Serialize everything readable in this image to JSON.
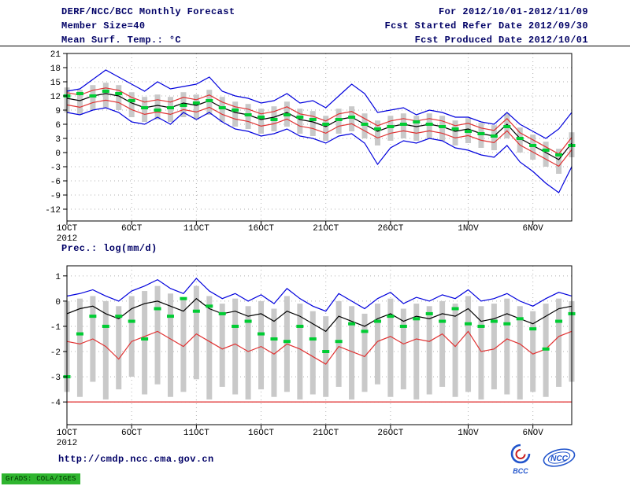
{
  "header": {
    "left": [
      "DERF/NCC/BCC Monthly Forecast",
      "Member Size=40",
      "Mean Surf. Temp.: °C"
    ],
    "right": [
      "For 2012/10/01-2012/11/09",
      "Fcst Started Refer Date 2012/09/30",
      "Fcst Produced Date 2012/10/01"
    ]
  },
  "footer": {
    "url": "http://cmdp.ncc.cma.gov.cn",
    "bcc_label": "BCC",
    "ncc_label": "NCC",
    "stamp": "GrADS: COLA/IGES"
  },
  "colors": {
    "annotation": "#000066",
    "ensemble_envelope": "#0000dd",
    "ensemble_mean": "#000000",
    "std_band": "#e03232",
    "observation": "#00cc33",
    "spread_bar": "#c9c9c9",
    "grid": "#b0b0b0"
  },
  "chart_data": [
    {
      "type": "line",
      "title": "Mean Surf. Temp.: °C",
      "ylabel": "°C",
      "ylim": [
        -14.5,
        21
      ],
      "yticks": [
        21,
        18,
        15,
        12,
        9,
        6,
        3,
        0,
        -3,
        -6,
        -9,
        -12
      ],
      "grid": true,
      "x_count": 40,
      "xticks": [
        {
          "i": 0,
          "label": "1OCT",
          "sub": "2012"
        },
        {
          "i": 5,
          "label": "6OCT"
        },
        {
          "i": 10,
          "label": "11OCT"
        },
        {
          "i": 15,
          "label": "16OCT"
        },
        {
          "i": 20,
          "label": "21OCT"
        },
        {
          "i": 25,
          "label": "26OCT"
        },
        {
          "i": 31,
          "label": "1NOV"
        },
        {
          "i": 36,
          "label": "6NOV"
        }
      ],
      "bars": {
        "name": "ensemble-spread",
        "color": "#c9c9c9",
        "top": [
          13.8,
          13.3,
          14.3,
          14.8,
          14.3,
          12.8,
          11.8,
          12.3,
          11.8,
          12.8,
          12.3,
          13.3,
          11.8,
          10.8,
          10.3,
          9.3,
          9.8,
          10.8,
          9.3,
          8.8,
          7.8,
          9.3,
          9.8,
          8.3,
          6.8,
          7.8,
          8.3,
          7.8,
          8.3,
          7.8,
          6.8,
          7.3,
          6.3,
          5.8,
          8.3,
          5.3,
          3.8,
          2.3,
          0.8,
          4.3
        ],
        "bottom": [
          8.5,
          8.0,
          9.0,
          9.5,
          9.0,
          7.5,
          6.5,
          7.0,
          6.5,
          7.5,
          7.0,
          8.0,
          6.5,
          5.5,
          5.0,
          4.0,
          4.5,
          5.5,
          4.0,
          3.5,
          2.5,
          4.0,
          4.5,
          3.0,
          1.5,
          2.5,
          3.0,
          2.5,
          3.0,
          2.5,
          1.5,
          2.0,
          1.0,
          0.5,
          3.0,
          0.0,
          -1.5,
          -3.0,
          -4.5,
          -1.0
        ]
      },
      "series": [
        {
          "name": "ensemble-max",
          "color": "#0000dd",
          "values": [
            13.0,
            13.5,
            15.5,
            17.5,
            16.0,
            14.5,
            13.0,
            15.0,
            13.5,
            14.0,
            14.5,
            16.0,
            13.0,
            12.0,
            11.5,
            10.5,
            11.0,
            12.5,
            10.5,
            11.0,
            9.5,
            12.0,
            14.5,
            12.5,
            8.5,
            9.0,
            9.5,
            8.0,
            9.0,
            8.5,
            7.5,
            7.5,
            6.5,
            6.0,
            8.5,
            6.0,
            4.5,
            3.0,
            5.0,
            8.5
          ]
        },
        {
          "name": "plus-1-std",
          "color": "#e03232",
          "values": [
            12.7,
            12.2,
            13.2,
            13.7,
            13.2,
            11.7,
            10.7,
            11.2,
            10.7,
            11.7,
            11.2,
            12.2,
            10.7,
            9.7,
            9.2,
            8.2,
            8.7,
            9.7,
            8.2,
            7.7,
            6.7,
            8.2,
            8.7,
            7.2,
            5.7,
            6.7,
            7.2,
            6.7,
            7.2,
            6.7,
            5.7,
            6.2,
            5.2,
            4.7,
            7.2,
            4.2,
            2.7,
            1.2,
            -0.3,
            3.2
          ]
        },
        {
          "name": "ensemble-mean",
          "color": "#000000",
          "values": [
            11.5,
            11.0,
            12.0,
            12.5,
            12.0,
            10.5,
            9.5,
            10.0,
            9.5,
            10.5,
            10.0,
            11.0,
            9.5,
            8.5,
            8.0,
            7.0,
            7.5,
            8.5,
            7.0,
            6.5,
            5.5,
            7.0,
            7.5,
            6.0,
            4.5,
            5.5,
            6.0,
            5.5,
            6.0,
            5.5,
            4.5,
            5.0,
            4.0,
            3.5,
            6.0,
            3.0,
            1.5,
            0.0,
            -1.5,
            2.0
          ]
        },
        {
          "name": "minus-1-std",
          "color": "#e03232",
          "values": [
            10.1,
            9.6,
            10.6,
            11.1,
            10.6,
            9.1,
            8.1,
            8.6,
            8.1,
            9.1,
            8.6,
            9.6,
            8.1,
            7.1,
            6.6,
            5.6,
            6.1,
            7.1,
            5.6,
            5.1,
            4.1,
            5.6,
            6.1,
            4.6,
            3.1,
            4.1,
            4.6,
            4.1,
            4.6,
            4.1,
            3.1,
            3.6,
            2.6,
            2.1,
            4.6,
            1.6,
            0.1,
            -1.4,
            -2.9,
            0.6
          ]
        },
        {
          "name": "ensemble-min",
          "color": "#0000dd",
          "values": [
            8.5,
            8.0,
            9.0,
            9.5,
            8.5,
            6.5,
            6.0,
            7.5,
            6.0,
            8.5,
            7.0,
            8.5,
            6.5,
            5.0,
            4.5,
            3.5,
            4.0,
            5.0,
            3.5,
            3.0,
            2.0,
            3.5,
            4.0,
            2.0,
            -2.5,
            1.0,
            2.5,
            2.0,
            3.0,
            2.5,
            1.0,
            0.5,
            -0.5,
            -1.0,
            1.5,
            -2.0,
            -4.0,
            -6.5,
            -8.5,
            -3.0
          ]
        }
      ],
      "markers": {
        "name": "observation",
        "color": "#00cc33",
        "values": [
          12.0,
          12.5,
          12.0,
          13.0,
          12.5,
          11.0,
          9.5,
          9.0,
          9.5,
          10.0,
          10.5,
          11.0,
          9.5,
          9.0,
          8.0,
          7.5,
          7.0,
          8.0,
          7.5,
          7.0,
          6.0,
          7.0,
          7.5,
          6.0,
          5.0,
          5.5,
          6.0,
          6.5,
          6.0,
          5.5,
          5.0,
          4.5,
          4.0,
          3.5,
          5.5,
          3.0,
          1.5,
          0.5,
          -0.5,
          1.5
        ]
      }
    },
    {
      "type": "line",
      "title": "Prec.: log(mm/d)",
      "ylabel": "log(mm/d)",
      "ylim": [
        -4.9,
        1.4
      ],
      "yticks": [
        1,
        0,
        -1,
        -2,
        -3,
        -4
      ],
      "grid": true,
      "x_count": 40,
      "xticks": [
        {
          "i": 0,
          "label": "1OCT",
          "sub": "2012"
        },
        {
          "i": 5,
          "label": "6OCT"
        },
        {
          "i": 10,
          "label": "11OCT"
        },
        {
          "i": 15,
          "label": "16OCT"
        },
        {
          "i": 20,
          "label": "21OCT"
        },
        {
          "i": 25,
          "label": "26OCT"
        },
        {
          "i": 31,
          "label": "1NOV"
        },
        {
          "i": 36,
          "label": "6NOV"
        }
      ],
      "baseline": {
        "y": -4,
        "color": "#e03232"
      },
      "bars": {
        "name": "ensemble-spread",
        "color": "#c9c9c9",
        "top": [
          0.0,
          0.1,
          0.2,
          0.0,
          -0.2,
          0.2,
          0.4,
          0.6,
          0.3,
          0.1,
          0.6,
          0.2,
          -0.1,
          0.1,
          -0.2,
          0.0,
          -0.3,
          0.2,
          -0.1,
          -0.4,
          -0.6,
          0.0,
          -0.2,
          -0.5,
          -0.1,
          0.1,
          -0.3,
          -0.1,
          -0.2,
          0.0,
          -0.1,
          0.2,
          -0.2,
          -0.1,
          0.1,
          -0.2,
          -0.4,
          -0.1,
          0.1,
          0.0
        ],
        "bottom": [
          -3.6,
          -3.8,
          -3.2,
          -3.9,
          -3.5,
          -3.0,
          -3.7,
          -3.3,
          -3.8,
          -3.6,
          -3.1,
          -3.9,
          -3.4,
          -3.7,
          -3.9,
          -3.5,
          -3.8,
          -3.6,
          -3.9,
          -3.7,
          -3.8,
          -3.4,
          -3.9,
          -3.6,
          -3.3,
          -3.8,
          -3.5,
          -3.9,
          -3.7,
          -3.4,
          -3.8,
          -3.6,
          -3.9,
          -3.5,
          -3.7,
          -3.9,
          -3.6,
          -3.8,
          -3.4,
          -3.2
        ]
      },
      "series": [
        {
          "name": "ensemble-max",
          "color": "#0000dd",
          "values": [
            0.2,
            0.3,
            0.45,
            0.2,
            0.0,
            0.4,
            0.6,
            0.85,
            0.5,
            0.3,
            0.9,
            0.4,
            0.1,
            0.3,
            0.0,
            0.25,
            -0.1,
            0.5,
            0.1,
            -0.2,
            -0.4,
            0.3,
            0.0,
            -0.3,
            0.1,
            0.35,
            -0.1,
            0.15,
            0.0,
            0.25,
            0.1,
            0.45,
            0.0,
            0.1,
            0.3,
            0.0,
            -0.2,
            0.1,
            0.35,
            0.2
          ]
        },
        {
          "name": "ensemble-mean",
          "color": "#000000",
          "values": [
            -0.5,
            -0.3,
            -0.2,
            -0.5,
            -0.7,
            -0.3,
            -0.1,
            0.0,
            -0.2,
            -0.4,
            0.1,
            -0.3,
            -0.5,
            -0.4,
            -0.6,
            -0.5,
            -0.8,
            -0.4,
            -0.6,
            -0.9,
            -1.2,
            -0.6,
            -0.8,
            -1.0,
            -0.7,
            -0.5,
            -0.8,
            -0.6,
            -0.7,
            -0.5,
            -0.6,
            -0.3,
            -0.8,
            -0.7,
            -0.5,
            -0.7,
            -0.9,
            -0.6,
            -0.3,
            -0.2
          ]
        },
        {
          "name": "ensemble-min",
          "color": "#e03232",
          "values": [
            -1.6,
            -1.7,
            -1.5,
            -1.8,
            -2.3,
            -1.6,
            -1.4,
            -1.2,
            -1.5,
            -1.8,
            -1.3,
            -1.6,
            -1.9,
            -1.7,
            -2.0,
            -1.8,
            -2.1,
            -1.7,
            -1.9,
            -2.2,
            -2.5,
            -1.8,
            -2.0,
            -2.2,
            -1.6,
            -1.4,
            -1.7,
            -1.5,
            -1.6,
            -1.3,
            -1.8,
            -1.2,
            -2.0,
            -1.9,
            -1.5,
            -1.7,
            -2.1,
            -1.9,
            -1.4,
            -1.2
          ]
        }
      ],
      "markers": {
        "name": "observation",
        "color": "#00cc33",
        "values": [
          -3.0,
          -1.3,
          -0.6,
          -1.0,
          -0.6,
          -0.8,
          -1.5,
          -0.3,
          -0.6,
          0.1,
          -0.4,
          -0.2,
          -0.5,
          -1.0,
          -0.8,
          -1.3,
          -1.5,
          -1.6,
          -1.0,
          -1.5,
          -2.0,
          -1.6,
          -0.9,
          -1.2,
          -0.8,
          -0.6,
          -1.0,
          -0.7,
          -0.5,
          -0.8,
          -0.3,
          -0.9,
          -1.0,
          -0.8,
          -0.9,
          -0.7,
          -1.1,
          -1.9,
          -0.8,
          -0.5
        ]
      }
    }
  ]
}
